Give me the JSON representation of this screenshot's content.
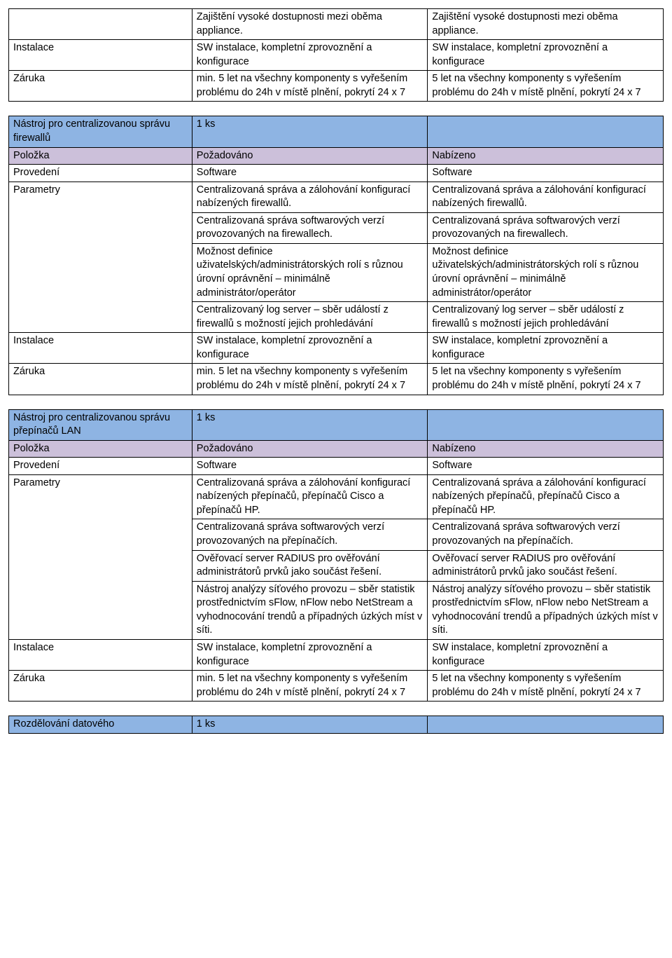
{
  "table1": {
    "rows": [
      {
        "c1": "",
        "c2": "Zajištění vysoké dostupnosti mezi oběma appliance.",
        "c3": "Zajištění vysoké dostupnosti mezi oběma appliance."
      },
      {
        "c1": "Instalace",
        "c2": "SW instalace, kompletní zprovoznění a konfigurace",
        "c3": "SW instalace, kompletní zprovoznění a konfigurace"
      },
      {
        "c1": "Záruka",
        "c2": "min. 5 let na všechny komponenty s vyřešením problému do 24h v místě plnění, pokrytí 24 x 7",
        "c3": "5 let na všechny komponenty s vyřešením problému do 24h v místě plnění, pokrytí 24 x 7"
      }
    ]
  },
  "table2": {
    "hdr1": {
      "c1": "Nástroj pro centralizovanou správu firewallů",
      "c2": "1 ks",
      "c3": ""
    },
    "hdr2": {
      "c1": "Položka",
      "c2": "Požadováno",
      "c3": "Nabízeno"
    },
    "rows": [
      {
        "c1": "Provedení",
        "c2": "Software",
        "c3": "Software"
      },
      {
        "c1": "Parametry",
        "c2": "Centralizovaná správa a zálohování konfigurací nabízených firewallů.",
        "c3": "Centralizovaná správa a zálohování konfigurací nabízených firewallů."
      },
      {
        "c1": "",
        "c2": "Centralizovaná správa softwarových verzí provozovaných na firewallech.",
        "c3": "Centralizovaná správa softwarových verzí provozovaných na firewallech."
      },
      {
        "c1": "",
        "c2": "Možnost definice uživatelských/administrátorských rolí s různou úrovní oprávnění – minimálně administrátor/operátor",
        "c3": "Možnost definice uživatelských/administrátorských rolí s různou úrovní oprávnění – minimálně administrátor/operátor"
      },
      {
        "c1": "",
        "c2": "Centralizovaný log server – sběr událostí z firewallů s možností jejich prohledávání",
        "c3": "Centralizovaný log server – sběr událostí z firewallů s možností jejich prohledávání"
      },
      {
        "c1": "Instalace",
        "c2": "SW instalace, kompletní zprovoznění a konfigurace",
        "c3": "SW instalace, kompletní zprovoznění a konfigurace"
      },
      {
        "c1": "Záruka",
        "c2": "min. 5 let na všechny komponenty s vyřešením problému do 24h v místě plnění, pokrytí 24 x 7",
        "c3": "5 let na všechny komponenty s vyřešením problému do 24h v místě plnění, pokrytí 24 x 7"
      }
    ]
  },
  "table3": {
    "hdr1": {
      "c1": "Nástroj pro centralizovanou správu přepínačů LAN",
      "c2": "1 ks",
      "c3": ""
    },
    "hdr2": {
      "c1": "Položka",
      "c2": "Požadováno",
      "c3": "Nabízeno"
    },
    "rows": [
      {
        "c1": "Provedení",
        "c2": "Software",
        "c3": "Software"
      },
      {
        "c1": "Parametry",
        "c2": "Centralizovaná správa a zálohování konfigurací nabízených přepínačů, přepínačů Cisco a přepínačů HP.",
        "c3": "Centralizovaná správa a zálohování konfigurací nabízených přepínačů, přepínačů Cisco a přepínačů HP."
      },
      {
        "c1": "",
        "c2": "Centralizovaná správa softwarových verzí provozovaných na přepínačích.",
        "c3": "Centralizovaná správa softwarových verzí provozovaných na přepínačích."
      },
      {
        "c1": "",
        "c2": "Ověřovací server RADIUS pro ověřování administrátorů prvků jako součást řešení.",
        "c3": "Ověřovací server RADIUS pro ověřování administrátorů prvků jako součást řešení."
      },
      {
        "c1": "",
        "c2": "Nástroj analýzy síťového provozu – sběr statistik prostřednictvím sFlow, nFlow nebo NetStream a vyhodnocování trendů a případných úzkých míst v síti.",
        "c3": "Nástroj analýzy síťového provozu – sběr statistik prostřednictvím sFlow, nFlow nebo NetStream a vyhodnocování trendů a případných úzkých míst v síti."
      },
      {
        "c1": "Instalace",
        "c2": "SW instalace, kompletní zprovoznění a konfigurace",
        "c3": "SW instalace, kompletní zprovoznění a konfigurace"
      },
      {
        "c1": "Záruka",
        "c2": "min. 5 let na všechny komponenty s vyřešením problému do 24h v místě plnění, pokrytí 24 x 7",
        "c3": "5 let na všechny komponenty s vyřešením problému do 24h v místě plnění, pokrytí 24 x 7"
      }
    ]
  },
  "table4": {
    "hdr1": {
      "c1": "Rozdělování datového",
      "c2": "1 ks",
      "c3": ""
    }
  }
}
